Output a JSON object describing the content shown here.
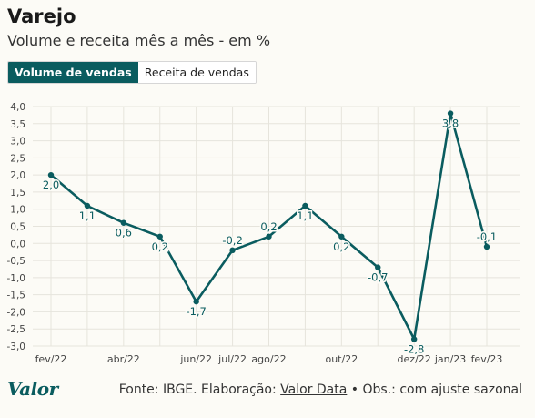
{
  "header": {
    "title": "Varejo",
    "subtitle": "Volume e receita mês a mês - em %"
  },
  "tabs": [
    {
      "label": "Volume de vendas",
      "active": true
    },
    {
      "label": "Receita de vendas",
      "active": false
    }
  ],
  "footer": {
    "logo": "Valor",
    "source_prefix": "Fonte: IBGE. Elaboração: ",
    "source_link": "Valor Data",
    "source_suffix": " • Obs.: com ajuste sazonal"
  },
  "colors": {
    "line": "#0a5c5f",
    "grid": "#e6e4dc",
    "active_tab": "#0a5c5f"
  },
  "chart_data": {
    "type": "line",
    "series": [
      {
        "values": [
          2.0,
          1.1,
          0.6,
          0.2,
          -1.7,
          -0.2,
          0.2,
          1.1,
          0.2,
          -0.7,
          -2.8,
          3.8,
          -0.1
        ],
        "labels": [
          "2,0",
          "1,1",
          "0,6",
          "0,2",
          "-1,7",
          "-0,2",
          "0,2",
          "1,1",
          "0,2",
          "-0,7",
          "-2,8",
          "3,8",
          "-0,1"
        ]
      }
    ],
    "x_tick_labels": [
      "fev/22",
      "",
      "abr/22",
      "",
      "jun/22",
      "jul/22",
      "ago/22",
      "",
      "out/22",
      "",
      "dez/22",
      "jan/23",
      "fev/23"
    ],
    "y_ticks": [
      4.0,
      3.5,
      3.0,
      2.5,
      2.0,
      1.5,
      1.0,
      0.5,
      0.0,
      -0.5,
      -1.0,
      -1.5,
      -2.0,
      -2.5,
      -3.0
    ],
    "y_tick_labels": [
      "4,0",
      "3,5",
      "3,0",
      "2,5",
      "2,0",
      "1,5",
      "1,0",
      "0,5",
      "0,0",
      "-0,5",
      "-1,0",
      "-1,5",
      "-2,0",
      "-2,5",
      "-3,0"
    ],
    "ylim": [
      -3.0,
      4.0
    ],
    "grid": true,
    "xlabel": "",
    "ylabel": ""
  }
}
